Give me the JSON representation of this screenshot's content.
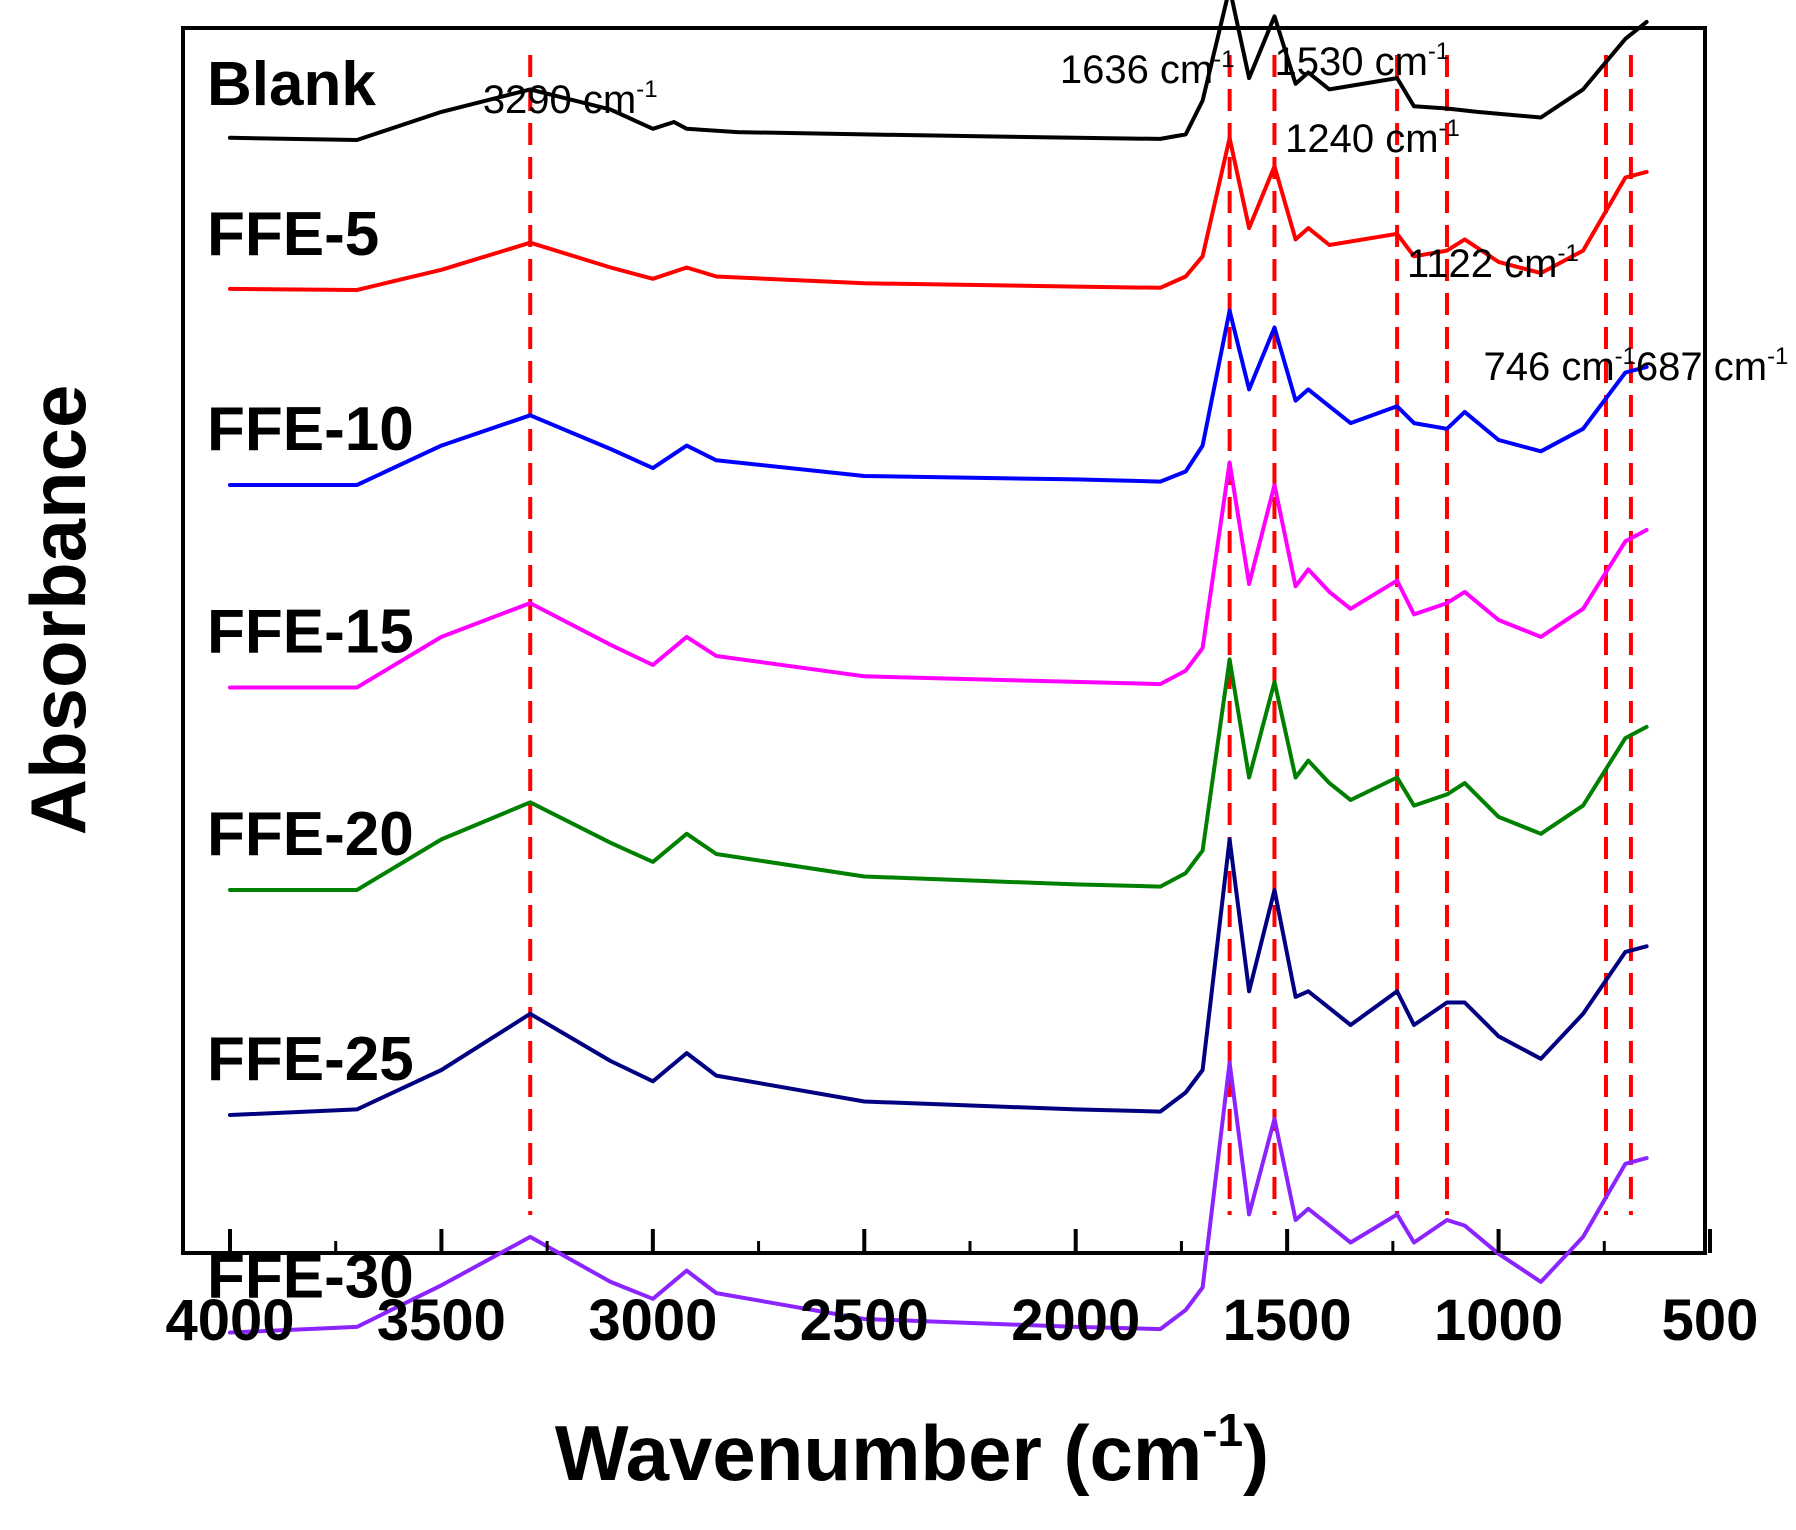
{
  "chart_data": {
    "type": "line",
    "title": "",
    "xlabel": "Wavenumber (cm",
    "xlabel_sup": "-1",
    "xlabel_close": ")",
    "ylabel": "Absorbance",
    "xlim": [
      4000,
      500
    ],
    "x_reversed": true,
    "y_ticks_labeled": false,
    "x_ticks": [
      "4000",
      "3500",
      "3000",
      "2500",
      "2000",
      "1500",
      "1000",
      "500"
    ],
    "series": [
      {
        "name": "Blank",
        "color": "#000000",
        "offset": 6.0,
        "scale": 0.75,
        "points": [
          [
            4000,
            0.02
          ],
          [
            3700,
            0.0
          ],
          [
            3500,
            0.25
          ],
          [
            3290,
            0.45
          ],
          [
            3100,
            0.27
          ],
          [
            3000,
            0.1
          ],
          [
            2950,
            0.16
          ],
          [
            2920,
            0.1
          ],
          [
            2800,
            0.07
          ],
          [
            2500,
            0.05
          ],
          [
            2000,
            0.02
          ],
          [
            1800,
            0.01
          ],
          [
            1740,
            0.05
          ],
          [
            1700,
            0.35
          ],
          [
            1636,
            1.35
          ],
          [
            1590,
            0.55
          ],
          [
            1530,
            1.1
          ],
          [
            1480,
            0.5
          ],
          [
            1450,
            0.6
          ],
          [
            1400,
            0.45
          ],
          [
            1240,
            0.55
          ],
          [
            1200,
            0.3
          ],
          [
            1122,
            0.28
          ],
          [
            1050,
            0.25
          ],
          [
            900,
            0.2
          ],
          [
            800,
            0.45
          ],
          [
            700,
            0.9
          ],
          [
            650,
            1.05
          ]
        ]
      },
      {
        "name": "FFE-5",
        "color": "#ff0000",
        "offset": 5.0,
        "scale": 0.75,
        "points": [
          [
            4000,
            0.01
          ],
          [
            3700,
            0.0
          ],
          [
            3500,
            0.18
          ],
          [
            3290,
            0.42
          ],
          [
            3100,
            0.2
          ],
          [
            3000,
            0.1
          ],
          [
            2920,
            0.2
          ],
          [
            2850,
            0.12
          ],
          [
            2500,
            0.06
          ],
          [
            2000,
            0.03
          ],
          [
            1800,
            0.02
          ],
          [
            1740,
            0.12
          ],
          [
            1700,
            0.3
          ],
          [
            1636,
            1.35
          ],
          [
            1590,
            0.55
          ],
          [
            1530,
            1.1
          ],
          [
            1480,
            0.45
          ],
          [
            1450,
            0.55
          ],
          [
            1400,
            0.4
          ],
          [
            1240,
            0.5
          ],
          [
            1200,
            0.3
          ],
          [
            1122,
            0.35
          ],
          [
            1080,
            0.45
          ],
          [
            1000,
            0.25
          ],
          [
            900,
            0.15
          ],
          [
            800,
            0.35
          ],
          [
            700,
            1.0
          ],
          [
            650,
            1.05
          ]
        ]
      },
      {
        "name": "FFE-10",
        "color": "#0000ff",
        "offset": 3.7,
        "scale": 0.75,
        "points": [
          [
            4000,
            0.0
          ],
          [
            3700,
            0.0
          ],
          [
            3500,
            0.35
          ],
          [
            3290,
            0.62
          ],
          [
            3100,
            0.32
          ],
          [
            3000,
            0.15
          ],
          [
            2920,
            0.35
          ],
          [
            2850,
            0.22
          ],
          [
            2500,
            0.08
          ],
          [
            2000,
            0.05
          ],
          [
            1800,
            0.03
          ],
          [
            1740,
            0.12
          ],
          [
            1700,
            0.35
          ],
          [
            1636,
            1.55
          ],
          [
            1590,
            0.85
          ],
          [
            1530,
            1.4
          ],
          [
            1480,
            0.75
          ],
          [
            1450,
            0.85
          ],
          [
            1400,
            0.7
          ],
          [
            1350,
            0.55
          ],
          [
            1240,
            0.7
          ],
          [
            1200,
            0.55
          ],
          [
            1122,
            0.5
          ],
          [
            1080,
            0.65
          ],
          [
            1000,
            0.4
          ],
          [
            900,
            0.3
          ],
          [
            800,
            0.5
          ],
          [
            700,
            1.0
          ],
          [
            650,
            1.05
          ]
        ]
      },
      {
        "name": "FFE-15",
        "color": "#ff00ff",
        "offset": 2.35,
        "scale": 0.75,
        "points": [
          [
            4000,
            0.0
          ],
          [
            3700,
            0.0
          ],
          [
            3500,
            0.45
          ],
          [
            3290,
            0.75
          ],
          [
            3100,
            0.38
          ],
          [
            3000,
            0.2
          ],
          [
            2920,
            0.45
          ],
          [
            2850,
            0.28
          ],
          [
            2500,
            0.1
          ],
          [
            2000,
            0.05
          ],
          [
            1800,
            0.03
          ],
          [
            1740,
            0.15
          ],
          [
            1700,
            0.35
          ],
          [
            1636,
            2.0
          ],
          [
            1590,
            0.92
          ],
          [
            1530,
            1.8
          ],
          [
            1480,
            0.9
          ],
          [
            1450,
            1.05
          ],
          [
            1400,
            0.85
          ],
          [
            1350,
            0.7
          ],
          [
            1240,
            0.95
          ],
          [
            1200,
            0.65
          ],
          [
            1122,
            0.75
          ],
          [
            1080,
            0.85
          ],
          [
            1000,
            0.6
          ],
          [
            900,
            0.45
          ],
          [
            800,
            0.7
          ],
          [
            700,
            1.3
          ],
          [
            650,
            1.4
          ]
        ]
      },
      {
        "name": "FFE-20",
        "color": "#008000",
        "offset": 1.0,
        "scale": 0.75,
        "points": [
          [
            4000,
            0.0
          ],
          [
            3700,
            0.0
          ],
          [
            3500,
            0.45
          ],
          [
            3290,
            0.78
          ],
          [
            3100,
            0.42
          ],
          [
            3000,
            0.25
          ],
          [
            2920,
            0.5
          ],
          [
            2850,
            0.32
          ],
          [
            2500,
            0.12
          ],
          [
            2000,
            0.05
          ],
          [
            1800,
            0.03
          ],
          [
            1740,
            0.15
          ],
          [
            1700,
            0.35
          ],
          [
            1636,
            2.05
          ],
          [
            1590,
            1.0
          ],
          [
            1530,
            1.85
          ],
          [
            1480,
            1.0
          ],
          [
            1450,
            1.15
          ],
          [
            1400,
            0.95
          ],
          [
            1350,
            0.8
          ],
          [
            1240,
            1.0
          ],
          [
            1200,
            0.75
          ],
          [
            1122,
            0.85
          ],
          [
            1080,
            0.95
          ],
          [
            1000,
            0.65
          ],
          [
            900,
            0.5
          ],
          [
            800,
            0.75
          ],
          [
            700,
            1.35
          ],
          [
            650,
            1.45
          ]
        ]
      },
      {
        "name": "FFE-25",
        "color": "#000080",
        "offset": -0.5,
        "scale": 0.75,
        "points": [
          [
            4000,
            0.0
          ],
          [
            3700,
            0.05
          ],
          [
            3500,
            0.4
          ],
          [
            3290,
            0.9
          ],
          [
            3100,
            0.48
          ],
          [
            3000,
            0.3
          ],
          [
            2920,
            0.55
          ],
          [
            2850,
            0.35
          ],
          [
            2500,
            0.12
          ],
          [
            2000,
            0.05
          ],
          [
            1800,
            0.03
          ],
          [
            1740,
            0.2
          ],
          [
            1700,
            0.4
          ],
          [
            1636,
            2.45
          ],
          [
            1590,
            1.1
          ],
          [
            1530,
            2.0
          ],
          [
            1480,
            1.05
          ],
          [
            1450,
            1.1
          ],
          [
            1400,
            0.95
          ],
          [
            1350,
            0.8
          ],
          [
            1240,
            1.1
          ],
          [
            1200,
            0.8
          ],
          [
            1122,
            1.0
          ],
          [
            1080,
            1.0
          ],
          [
            1000,
            0.7
          ],
          [
            900,
            0.5
          ],
          [
            800,
            0.9
          ],
          [
            700,
            1.45
          ],
          [
            650,
            1.5
          ]
        ]
      },
      {
        "name": "FFE-30",
        "color": "#8b24ff",
        "offset": -1.95,
        "scale": 0.75,
        "points": [
          [
            4000,
            0.0
          ],
          [
            3700,
            0.05
          ],
          [
            3500,
            0.42
          ],
          [
            3290,
            0.85
          ],
          [
            3100,
            0.45
          ],
          [
            3000,
            0.3
          ],
          [
            2920,
            0.55
          ],
          [
            2850,
            0.35
          ],
          [
            2500,
            0.12
          ],
          [
            2000,
            0.05
          ],
          [
            1800,
            0.03
          ],
          [
            1740,
            0.2
          ],
          [
            1700,
            0.4
          ],
          [
            1636,
            2.4
          ],
          [
            1590,
            1.05
          ],
          [
            1530,
            1.9
          ],
          [
            1480,
            1.0
          ],
          [
            1450,
            1.1
          ],
          [
            1400,
            0.95
          ],
          [
            1350,
            0.8
          ],
          [
            1240,
            1.05
          ],
          [
            1200,
            0.8
          ],
          [
            1122,
            1.0
          ],
          [
            1080,
            0.95
          ],
          [
            1000,
            0.7
          ],
          [
            900,
            0.45
          ],
          [
            800,
            0.85
          ],
          [
            700,
            1.5
          ],
          [
            650,
            1.55
          ]
        ]
      }
    ],
    "reference_lines": {
      "color": "#ff0000",
      "positions": [
        3290,
        1636,
        1530,
        1240,
        1122,
        746,
        687
      ]
    },
    "annotations": [
      {
        "text": "3290 cm",
        "sup": "-1",
        "at": 3290
      },
      {
        "text": "1636 cm",
        "sup": "-1",
        "at": 1636
      },
      {
        "text": "1530 cm",
        "sup": "-1",
        "at": 1530
      },
      {
        "text": "1240 cm",
        "sup": "-1",
        "at": 1240
      },
      {
        "text": "1122 cm",
        "sup": "-1",
        "at": 1122
      },
      {
        "text": "746 cm",
        "sup": "-1",
        "at": 746
      },
      {
        "text": "687 cm",
        "sup": "-1",
        "at": 687
      }
    ]
  }
}
